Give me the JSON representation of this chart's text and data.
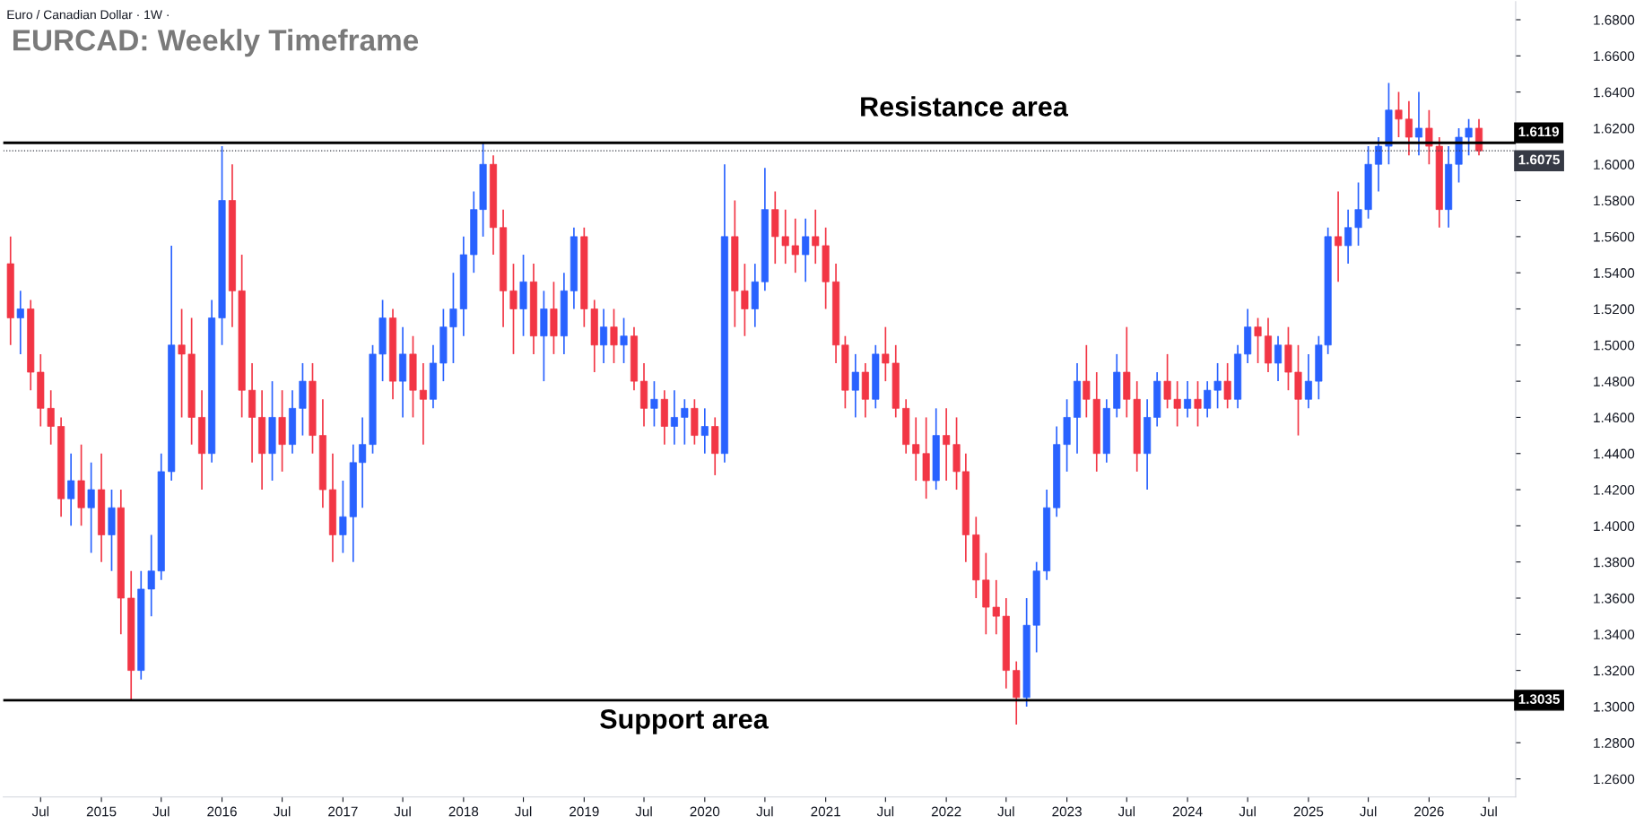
{
  "chart_data": {
    "type": "candlestick",
    "title": "EURCAD: Weekly Timeframe",
    "subtitle": "Euro / Canadian Dollar · 1W ·",
    "annotations": [
      "Resistance area",
      "Support area"
    ],
    "x": [
      "2014-04",
      "2014-05",
      "2014-06",
      "2014-07",
      "2014-08",
      "2014-09",
      "2014-10",
      "2014-11",
      "2014-12",
      "2015-01",
      "2015-02",
      "2015-03",
      "2015-04",
      "2015-05",
      "2015-06",
      "2015-07",
      "2015-08",
      "2015-09",
      "2015-10",
      "2015-11",
      "2015-12",
      "2016-01",
      "2016-02",
      "2016-03",
      "2016-04",
      "2016-05",
      "2016-06",
      "2016-07",
      "2016-08",
      "2016-09",
      "2016-10",
      "2016-11",
      "2016-12",
      "2017-01",
      "2017-02",
      "2017-03",
      "2017-04",
      "2017-05",
      "2017-06",
      "2017-07",
      "2017-08",
      "2017-09",
      "2017-10",
      "2017-11",
      "2017-12",
      "2018-01",
      "2018-02",
      "2018-03",
      "2018-04",
      "2018-05",
      "2018-06",
      "2018-07",
      "2018-08",
      "2018-09",
      "2018-10",
      "2018-11",
      "2018-12",
      "2019-01",
      "2019-02",
      "2019-03",
      "2019-04",
      "2019-05",
      "2019-06",
      "2019-07",
      "2019-08",
      "2019-09",
      "2019-10",
      "2019-11",
      "2019-12",
      "2020-01",
      "2020-02",
      "2020-03",
      "2020-04",
      "2020-05",
      "2020-06",
      "2020-07",
      "2020-08",
      "2020-09",
      "2020-10",
      "2020-11",
      "2020-12",
      "2021-01",
      "2021-02",
      "2021-03",
      "2021-04",
      "2021-05",
      "2021-06",
      "2021-07",
      "2021-08",
      "2021-09",
      "2021-10",
      "2021-11",
      "2021-12",
      "2022-01",
      "2022-02",
      "2022-03",
      "2022-04",
      "2022-05",
      "2022-06",
      "2022-07",
      "2022-08",
      "2022-09",
      "2022-10",
      "2022-11",
      "2022-12",
      "2023-01",
      "2023-02",
      "2023-03",
      "2023-04",
      "2023-05",
      "2023-06",
      "2023-07",
      "2023-08",
      "2023-09",
      "2023-10",
      "2023-11",
      "2023-12",
      "2024-01",
      "2024-02",
      "2024-03",
      "2024-04",
      "2024-05",
      "2024-06",
      "2024-07",
      "2024-08",
      "2024-09",
      "2024-10",
      "2024-11",
      "2024-12",
      "2025-01",
      "2025-02",
      "2025-03",
      "2025-04",
      "2025-05",
      "2025-06",
      "2025-07",
      "2025-08",
      "2025-09",
      "2025-10",
      "2025-11",
      "2025-12",
      "2026-01",
      "2026-02",
      "2026-03",
      "2026-04",
      "2026-05",
      "2026-06"
    ],
    "ohlc": [
      [
        1.545,
        1.56,
        1.5,
        1.515
      ],
      [
        1.515,
        1.53,
        1.495,
        1.52
      ],
      [
        1.52,
        1.525,
        1.475,
        1.485
      ],
      [
        1.485,
        1.495,
        1.455,
        1.465
      ],
      [
        1.465,
        1.475,
        1.445,
        1.455
      ],
      [
        1.455,
        1.46,
        1.405,
        1.415
      ],
      [
        1.415,
        1.44,
        1.4,
        1.425
      ],
      [
        1.425,
        1.445,
        1.4,
        1.41
      ],
      [
        1.41,
        1.435,
        1.385,
        1.42
      ],
      [
        1.42,
        1.44,
        1.38,
        1.395
      ],
      [
        1.395,
        1.42,
        1.375,
        1.41
      ],
      [
        1.41,
        1.42,
        1.34,
        1.36
      ],
      [
        1.36,
        1.375,
        1.303,
        1.32
      ],
      [
        1.32,
        1.375,
        1.315,
        1.365
      ],
      [
        1.365,
        1.395,
        1.35,
        1.375
      ],
      [
        1.375,
        1.44,
        1.37,
        1.43
      ],
      [
        1.43,
        1.555,
        1.425,
        1.5
      ],
      [
        1.5,
        1.52,
        1.46,
        1.495
      ],
      [
        1.495,
        1.515,
        1.445,
        1.46
      ],
      [
        1.46,
        1.475,
        1.42,
        1.44
      ],
      [
        1.44,
        1.525,
        1.435,
        1.515
      ],
      [
        1.515,
        1.61,
        1.5,
        1.58
      ],
      [
        1.58,
        1.6,
        1.51,
        1.53
      ],
      [
        1.53,
        1.55,
        1.46,
        1.475
      ],
      [
        1.475,
        1.49,
        1.435,
        1.46
      ],
      [
        1.46,
        1.475,
        1.42,
        1.44
      ],
      [
        1.44,
        1.48,
        1.425,
        1.46
      ],
      [
        1.46,
        1.475,
        1.43,
        1.445
      ],
      [
        1.445,
        1.475,
        1.44,
        1.465
      ],
      [
        1.465,
        1.49,
        1.45,
        1.48
      ],
      [
        1.48,
        1.49,
        1.44,
        1.45
      ],
      [
        1.45,
        1.47,
        1.41,
        1.42
      ],
      [
        1.42,
        1.44,
        1.38,
        1.395
      ],
      [
        1.395,
        1.425,
        1.385,
        1.405
      ],
      [
        1.405,
        1.445,
        1.38,
        1.435
      ],
      [
        1.435,
        1.46,
        1.41,
        1.445
      ],
      [
        1.445,
        1.5,
        1.44,
        1.495
      ],
      [
        1.495,
        1.525,
        1.48,
        1.515
      ],
      [
        1.515,
        1.52,
        1.47,
        1.48
      ],
      [
        1.48,
        1.51,
        1.46,
        1.495
      ],
      [
        1.495,
        1.505,
        1.46,
        1.475
      ],
      [
        1.475,
        1.49,
        1.445,
        1.47
      ],
      [
        1.47,
        1.5,
        1.465,
        1.49
      ],
      [
        1.49,
        1.52,
        1.48,
        1.51
      ],
      [
        1.51,
        1.54,
        1.49,
        1.52
      ],
      [
        1.52,
        1.56,
        1.505,
        1.55
      ],
      [
        1.55,
        1.585,
        1.54,
        1.575
      ],
      [
        1.575,
        1.612,
        1.56,
        1.6
      ],
      [
        1.6,
        1.605,
        1.55,
        1.565
      ],
      [
        1.565,
        1.575,
        1.51,
        1.53
      ],
      [
        1.53,
        1.545,
        1.495,
        1.52
      ],
      [
        1.52,
        1.55,
        1.505,
        1.535
      ],
      [
        1.535,
        1.545,
        1.495,
        1.505
      ],
      [
        1.505,
        1.53,
        1.48,
        1.52
      ],
      [
        1.52,
        1.535,
        1.495,
        1.505
      ],
      [
        1.505,
        1.54,
        1.495,
        1.53
      ],
      [
        1.53,
        1.565,
        1.52,
        1.56
      ],
      [
        1.56,
        1.565,
        1.51,
        1.52
      ],
      [
        1.52,
        1.525,
        1.485,
        1.5
      ],
      [
        1.5,
        1.52,
        1.49,
        1.51
      ],
      [
        1.51,
        1.52,
        1.49,
        1.5
      ],
      [
        1.5,
        1.515,
        1.49,
        1.505
      ],
      [
        1.505,
        1.51,
        1.475,
        1.48
      ],
      [
        1.48,
        1.49,
        1.455,
        1.465
      ],
      [
        1.465,
        1.48,
        1.455,
        1.47
      ],
      [
        1.47,
        1.475,
        1.445,
        1.455
      ],
      [
        1.455,
        1.475,
        1.445,
        1.46
      ],
      [
        1.46,
        1.47,
        1.445,
        1.465
      ],
      [
        1.465,
        1.47,
        1.445,
        1.45
      ],
      [
        1.45,
        1.465,
        1.44,
        1.455
      ],
      [
        1.455,
        1.46,
        1.428,
        1.44
      ],
      [
        1.44,
        1.6,
        1.435,
        1.56
      ],
      [
        1.56,
        1.58,
        1.51,
        1.53
      ],
      [
        1.53,
        1.545,
        1.505,
        1.52
      ],
      [
        1.52,
        1.545,
        1.51,
        1.535
      ],
      [
        1.535,
        1.598,
        1.53,
        1.575
      ],
      [
        1.575,
        1.585,
        1.545,
        1.56
      ],
      [
        1.56,
        1.575,
        1.545,
        1.555
      ],
      [
        1.555,
        1.57,
        1.54,
        1.55
      ],
      [
        1.55,
        1.57,
        1.535,
        1.56
      ],
      [
        1.56,
        1.575,
        1.545,
        1.555
      ],
      [
        1.555,
        1.565,
        1.52,
        1.535
      ],
      [
        1.535,
        1.545,
        1.49,
        1.5
      ],
      [
        1.5,
        1.505,
        1.465,
        1.475
      ],
      [
        1.475,
        1.495,
        1.46,
        1.485
      ],
      [
        1.485,
        1.49,
        1.46,
        1.47
      ],
      [
        1.47,
        1.5,
        1.465,
        1.495
      ],
      [
        1.495,
        1.51,
        1.48,
        1.49
      ],
      [
        1.49,
        1.5,
        1.46,
        1.465
      ],
      [
        1.465,
        1.47,
        1.44,
        1.445
      ],
      [
        1.445,
        1.46,
        1.425,
        1.44
      ],
      [
        1.44,
        1.46,
        1.415,
        1.425
      ],
      [
        1.425,
        1.465,
        1.42,
        1.45
      ],
      [
        1.45,
        1.465,
        1.425,
        1.445
      ],
      [
        1.445,
        1.46,
        1.42,
        1.43
      ],
      [
        1.43,
        1.44,
        1.38,
        1.395
      ],
      [
        1.395,
        1.405,
        1.36,
        1.37
      ],
      [
        1.37,
        1.385,
        1.34,
        1.355
      ],
      [
        1.355,
        1.37,
        1.34,
        1.35
      ],
      [
        1.35,
        1.36,
        1.31,
        1.32
      ],
      [
        1.32,
        1.325,
        1.29,
        1.305
      ],
      [
        1.305,
        1.36,
        1.3,
        1.345
      ],
      [
        1.345,
        1.38,
        1.33,
        1.375
      ],
      [
        1.375,
        1.42,
        1.37,
        1.41
      ],
      [
        1.41,
        1.455,
        1.405,
        1.445
      ],
      [
        1.445,
        1.47,
        1.43,
        1.46
      ],
      [
        1.46,
        1.49,
        1.44,
        1.48
      ],
      [
        1.48,
        1.5,
        1.46,
        1.47
      ],
      [
        1.47,
        1.485,
        1.43,
        1.44
      ],
      [
        1.44,
        1.47,
        1.435,
        1.465
      ],
      [
        1.465,
        1.495,
        1.46,
        1.485
      ],
      [
        1.485,
        1.51,
        1.46,
        1.47
      ],
      [
        1.47,
        1.48,
        1.43,
        1.44
      ],
      [
        1.44,
        1.47,
        1.42,
        1.46
      ],
      [
        1.46,
        1.485,
        1.455,
        1.48
      ],
      [
        1.48,
        1.495,
        1.465,
        1.47
      ],
      [
        1.47,
        1.48,
        1.455,
        1.465
      ],
      [
        1.465,
        1.48,
        1.46,
        1.47
      ],
      [
        1.47,
        1.48,
        1.455,
        1.465
      ],
      [
        1.465,
        1.48,
        1.46,
        1.475
      ],
      [
        1.475,
        1.49,
        1.465,
        1.48
      ],
      [
        1.48,
        1.49,
        1.465,
        1.47
      ],
      [
        1.47,
        1.5,
        1.465,
        1.495
      ],
      [
        1.495,
        1.52,
        1.49,
        1.51
      ],
      [
        1.51,
        1.515,
        1.49,
        1.505
      ],
      [
        1.505,
        1.515,
        1.485,
        1.49
      ],
      [
        1.49,
        1.505,
        1.48,
        1.5
      ],
      [
        1.5,
        1.51,
        1.475,
        1.485
      ],
      [
        1.485,
        1.5,
        1.45,
        1.47
      ],
      [
        1.47,
        1.495,
        1.465,
        1.48
      ],
      [
        1.48,
        1.505,
        1.47,
        1.5
      ],
      [
        1.5,
        1.565,
        1.495,
        1.56
      ],
      [
        1.56,
        1.585,
        1.535,
        1.555
      ],
      [
        1.555,
        1.575,
        1.545,
        1.565
      ],
      [
        1.565,
        1.59,
        1.555,
        1.575
      ],
      [
        1.575,
        1.61,
        1.57,
        1.6
      ],
      [
        1.6,
        1.615,
        1.585,
        1.61
      ],
      [
        1.61,
        1.645,
        1.6,
        1.63
      ],
      [
        1.63,
        1.64,
        1.615,
        1.625
      ],
      [
        1.625,
        1.635,
        1.605,
        1.615
      ],
      [
        1.615,
        1.64,
        1.605,
        1.62
      ],
      [
        1.62,
        1.63,
        1.6,
        1.61
      ],
      [
        1.61,
        1.615,
        1.565,
        1.575
      ],
      [
        1.575,
        1.61,
        1.565,
        1.6
      ],
      [
        1.6,
        1.62,
        1.59,
        1.615
      ],
      [
        1.615,
        1.625,
        1.605,
        1.62
      ],
      [
        1.62,
        1.625,
        1.605,
        1.6075
      ]
    ],
    "colors": [
      "#f23645",
      "#2962ff",
      "#f23645",
      "#f23645",
      "#f23645",
      "#f23645",
      "#2962ff",
      "#f23645",
      "#2962ff",
      "#f23645",
      "#2962ff",
      "#f23645",
      "#f23645",
      "#2962ff",
      "#2962ff",
      "#2962ff",
      "#2962ff",
      "#f23645",
      "#f23645",
      "#f23645",
      "#2962ff",
      "#2962ff",
      "#f23645",
      "#f23645",
      "#f23645",
      "#f23645",
      "#2962ff",
      "#f23645",
      "#2962ff",
      "#2962ff",
      "#f23645",
      "#f23645",
      "#f23645",
      "#2962ff",
      "#2962ff",
      "#2962ff",
      "#2962ff",
      "#2962ff",
      "#f23645",
      "#2962ff",
      "#f23645",
      "#f23645",
      "#2962ff",
      "#2962ff",
      "#2962ff",
      "#2962ff",
      "#2962ff",
      "#2962ff",
      "#f23645",
      "#f23645",
      "#f23645",
      "#2962ff",
      "#f23645",
      "#2962ff",
      "#f23645",
      "#2962ff",
      "#2962ff",
      "#f23645",
      "#f23645",
      "#2962ff",
      "#f23645",
      "#2962ff",
      "#f23645",
      "#f23645",
      "#2962ff",
      "#f23645",
      "#2962ff",
      "#2962ff",
      "#f23645",
      "#2962ff",
      "#f23645",
      "#2962ff",
      "#f23645",
      "#f23645",
      "#2962ff",
      "#2962ff",
      "#f23645",
      "#f23645",
      "#f23645",
      "#2962ff",
      "#f23645",
      "#f23645",
      "#f23645",
      "#f23645",
      "#2962ff",
      "#f23645",
      "#2962ff",
      "#f23645",
      "#f23645",
      "#f23645",
      "#f23645",
      "#f23645",
      "#2962ff",
      "#f23645",
      "#f23645",
      "#f23645",
      "#f23645",
      "#f23645",
      "#f23645",
      "#f23645",
      "#f23645",
      "#2962ff",
      "#2962ff",
      "#2962ff",
      "#2962ff",
      "#2962ff",
      "#2962ff",
      "#f23645",
      "#f23645",
      "#2962ff",
      "#2962ff",
      "#f23645",
      "#f23645",
      "#2962ff",
      "#2962ff",
      "#f23645",
      "#f23645",
      "#2962ff",
      "#f23645",
      "#2962ff",
      "#2962ff",
      "#f23645",
      "#2962ff",
      "#2962ff",
      "#f23645",
      "#f23645",
      "#2962ff",
      "#f23645",
      "#f23645",
      "#2962ff",
      "#2962ff",
      "#2962ff",
      "#f23645",
      "#2962ff",
      "#2962ff",
      "#2962ff",
      "#2962ff",
      "#2962ff",
      "#f23645",
      "#f23645",
      "#2962ff",
      "#f23645",
      "#f23645",
      "#2962ff",
      "#2962ff",
      "#2962ff",
      "#f23645"
    ],
    "xlim": [
      "2014-03-10",
      "2026-09-20"
    ],
    "xticks": [
      {
        "value": "2014-07",
        "label": "Jul"
      },
      {
        "value": "2015",
        "label": "2015"
      },
      {
        "value": "2015-07",
        "label": "Jul"
      },
      {
        "value": "2016",
        "label": "2016"
      },
      {
        "value": "2016-07",
        "label": "Jul"
      },
      {
        "value": "2017",
        "label": "2017"
      },
      {
        "value": "2017-07",
        "label": "Jul"
      },
      {
        "value": "2018",
        "label": "2018"
      },
      {
        "value": "2018-07",
        "label": "Jul"
      },
      {
        "value": "2019",
        "label": "2019"
      },
      {
        "value": "2019-07",
        "label": "Jul"
      },
      {
        "value": "2020",
        "label": "2020"
      },
      {
        "value": "2020-07",
        "label": "Jul"
      },
      {
        "value": "2021",
        "label": "2021"
      },
      {
        "value": "2021-07",
        "label": "Jul"
      },
      {
        "value": "2022",
        "label": "2022"
      },
      {
        "value": "2022-07",
        "label": "Jul"
      },
      {
        "value": "2023",
        "label": "2023"
      },
      {
        "value": "2023-07",
        "label": "Jul"
      },
      {
        "value": "2024",
        "label": "2024"
      },
      {
        "value": "2024-07",
        "label": "Jul"
      },
      {
        "value": "2025",
        "label": "2025"
      },
      {
        "value": "2025-07",
        "label": "Jul"
      },
      {
        "value": "2026",
        "label": "2026"
      },
      {
        "value": "2026-07",
        "label": "Jul"
      }
    ],
    "ylim": [
      1.25,
      1.69
    ],
    "yticks": [
      {
        "value": 1.26,
        "label": "1.2600"
      },
      {
        "value": 1.28,
        "label": "1.2800"
      },
      {
        "value": 1.3,
        "label": "1.3000"
      },
      {
        "value": 1.32,
        "label": "1.3200"
      },
      {
        "value": 1.34,
        "label": "1.3400"
      },
      {
        "value": 1.36,
        "label": "1.3600"
      },
      {
        "value": 1.38,
        "label": "1.3800"
      },
      {
        "value": 1.4,
        "label": "1.4000"
      },
      {
        "value": 1.42,
        "label": "1.4200"
      },
      {
        "value": 1.44,
        "label": "1.4400"
      },
      {
        "value": 1.46,
        "label": "1.4600"
      },
      {
        "value": 1.48,
        "label": "1.4800"
      },
      {
        "value": 1.5,
        "label": "1.5000"
      },
      {
        "value": 1.52,
        "label": "1.5200"
      },
      {
        "value": 1.54,
        "label": "1.5400"
      },
      {
        "value": 1.56,
        "label": "1.5600"
      },
      {
        "value": 1.58,
        "label": "1.5800"
      },
      {
        "value": 1.6,
        "label": "1.6000"
      },
      {
        "value": 1.62,
        "label": "1.6200"
      },
      {
        "value": 1.64,
        "label": "1.6400"
      },
      {
        "value": 1.66,
        "label": "1.6600"
      },
      {
        "value": 1.68,
        "label": "1.6800"
      }
    ],
    "ref_lines": [
      {
        "axis": "y",
        "value": 1.6119,
        "label": "1.6119",
        "color": "#000000",
        "line_style": "solid"
      },
      {
        "axis": "y",
        "value": 1.6075,
        "label": "1.6075",
        "color": "#363a45",
        "line_style": "dotted"
      },
      {
        "axis": "y",
        "value": 1.3035,
        "label": "1.3035",
        "color": "#000000",
        "line_style": "solid"
      }
    ],
    "grid": false
  }
}
